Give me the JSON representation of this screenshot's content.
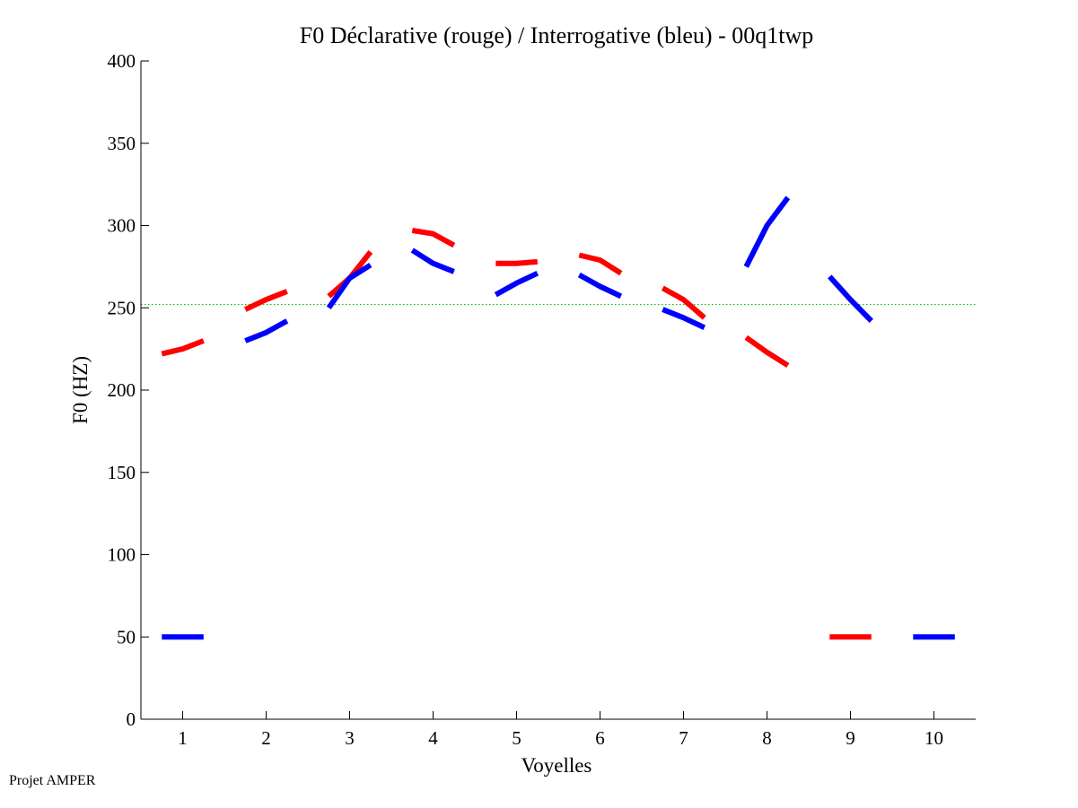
{
  "chart_data": {
    "type": "line",
    "title": "F0 Déclarative (rouge) / Interrogative (bleu) - 00q1twp",
    "xlabel": "Voyelles",
    "ylabel": "F0 (HZ)",
    "xlim": [
      0.5,
      10.5
    ],
    "ylim": [
      0,
      400
    ],
    "xticks": [
      1,
      2,
      3,
      4,
      5,
      6,
      7,
      8,
      9,
      10
    ],
    "yticks": [
      0,
      50,
      100,
      150,
      200,
      250,
      300,
      350,
      400
    ],
    "reference_line": {
      "y": 252,
      "color": "#00c000",
      "style": "dotted"
    },
    "series": [
      {
        "name": "Déclarative",
        "color": "#ff0000",
        "segments": [
          [
            [
              0.75,
              222
            ],
            [
              1.0,
              225
            ],
            [
              1.25,
              230
            ]
          ],
          [
            [
              1.75,
              249
            ],
            [
              2.0,
              255
            ],
            [
              2.25,
              260
            ]
          ],
          [
            [
              2.75,
              257
            ],
            [
              3.0,
              268
            ],
            [
              3.25,
              284
            ]
          ],
          [
            [
              3.75,
              297
            ],
            [
              4.0,
              295
            ],
            [
              4.25,
              288
            ]
          ],
          [
            [
              4.75,
              277
            ],
            [
              5.0,
              277
            ],
            [
              5.25,
              278
            ]
          ],
          [
            [
              5.75,
              282
            ],
            [
              6.0,
              279
            ],
            [
              6.25,
              271
            ]
          ],
          [
            [
              6.75,
              262
            ],
            [
              7.0,
              255
            ],
            [
              7.25,
              244
            ]
          ],
          [
            [
              7.75,
              232
            ],
            [
              8.0,
              223
            ],
            [
              8.25,
              215
            ]
          ],
          [
            [
              8.75,
              50
            ],
            [
              9.0,
              50
            ],
            [
              9.25,
              50
            ]
          ]
        ]
      },
      {
        "name": "Interrogative",
        "color": "#0000ff",
        "segments": [
          [
            [
              0.75,
              50
            ],
            [
              1.0,
              50
            ],
            [
              1.25,
              50
            ]
          ],
          [
            [
              1.75,
              230
            ],
            [
              2.0,
              235
            ],
            [
              2.25,
              242
            ]
          ],
          [
            [
              2.75,
              250
            ],
            [
              3.0,
              268
            ],
            [
              3.25,
              276
            ]
          ],
          [
            [
              3.75,
              285
            ],
            [
              4.0,
              277
            ],
            [
              4.25,
              272
            ]
          ],
          [
            [
              4.75,
              258
            ],
            [
              5.0,
              265
            ],
            [
              5.25,
              271
            ]
          ],
          [
            [
              5.75,
              270
            ],
            [
              6.0,
              263
            ],
            [
              6.25,
              257
            ]
          ],
          [
            [
              6.75,
              249
            ],
            [
              7.0,
              244
            ],
            [
              7.25,
              238
            ]
          ],
          [
            [
              7.75,
              275
            ],
            [
              8.0,
              300
            ],
            [
              8.25,
              317
            ]
          ],
          [
            [
              8.75,
              269
            ],
            [
              9.0,
              255
            ],
            [
              9.25,
              242
            ]
          ],
          [
            [
              9.75,
              50
            ],
            [
              10.0,
              50
            ],
            [
              10.25,
              50
            ]
          ]
        ]
      }
    ]
  },
  "footer": {
    "text": "Projet AMPER"
  }
}
